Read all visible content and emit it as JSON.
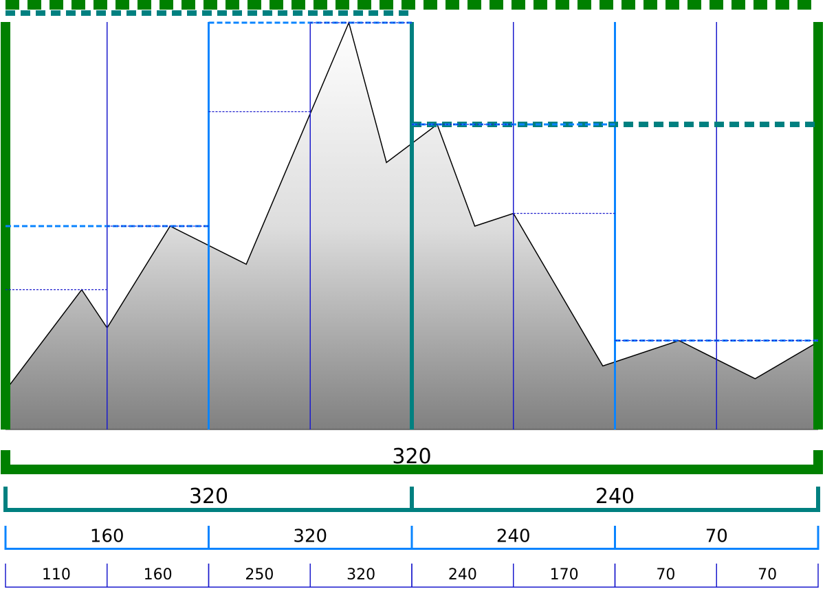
{
  "levels": [
    {
      "values": [
        320
      ]
    },
    {
      "values": [
        320,
        240
      ]
    },
    {
      "values": [
        160,
        320,
        240,
        70
      ]
    },
    {
      "values": [
        110,
        160,
        250,
        320,
        240,
        170,
        70,
        70
      ]
    }
  ],
  "profile": {
    "x": [
      0.04,
      0.75,
      1,
      1.62,
      2.37,
      3.38,
      3.75,
      4.25,
      4.62,
      5,
      5.88,
      6.63,
      7.38,
      7.98
    ],
    "y": [
      35,
      110,
      80,
      160,
      130,
      320,
      210,
      240,
      160,
      170,
      50,
      70,
      40,
      68
    ]
  }
}
